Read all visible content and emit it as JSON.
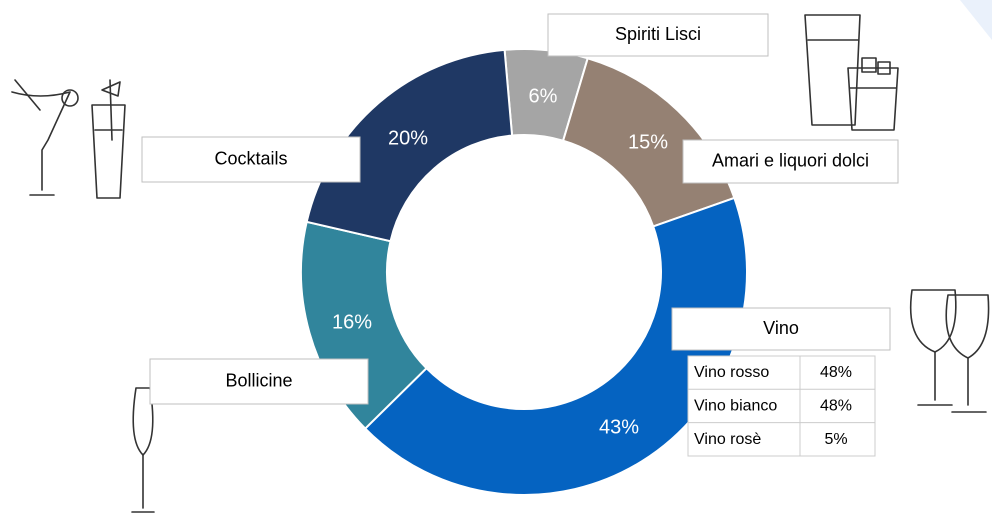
{
  "chart_data": {
    "type": "donut",
    "categories": [
      "Spiriti Lisci",
      "Amari e liquori dolci",
      "Vino",
      "Bollicine",
      "Cocktails"
    ],
    "values": [
      6,
      15,
      43,
      16,
      20
    ],
    "value_labels": [
      "6%",
      "15%",
      "43%",
      "16%",
      "20%"
    ],
    "colors": [
      "#a5a5a5",
      "#958173",
      "#0563c1",
      "#31859c",
      "#1f3864"
    ]
  },
  "table": {
    "rows": [
      [
        "Vino rosso",
        "48%"
      ],
      [
        "Vino bianco",
        "48%"
      ],
      [
        "Vino rosè",
        "5%"
      ]
    ]
  }
}
